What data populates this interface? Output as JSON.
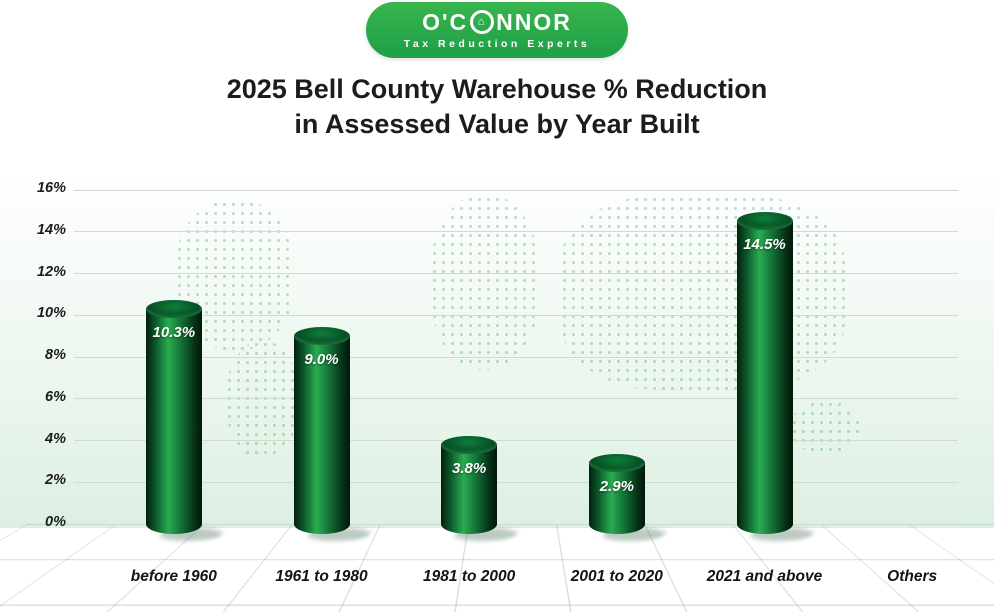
{
  "theme": {
    "brand_green": "#38b54d",
    "brand_green_dark": "#1f9f48",
    "bar_light": "#2aac50",
    "bar_dark": "#041f0e",
    "bg_tint": "#dcefe2",
    "grid_color": "#cfdad1",
    "title_color": "#1c1c1c"
  },
  "logo": {
    "name_prefix": "O'C",
    "house_icon": "⌂",
    "name_suffix": "NNOR",
    "tagline": "Tax Reduction Experts"
  },
  "title": {
    "line1": "2025 Bell County Warehouse % Reduction",
    "line2": "in Assessed Value by Year Built"
  },
  "chart_data": {
    "type": "bar",
    "style": "3d-cylinder",
    "title": "2025 Bell County Warehouse % Reduction in Assessed Value by Year Built",
    "categories": [
      "before 1960",
      "1961 to 1980",
      "1981 to 2000",
      "2001 to 2020",
      "2021 and above",
      "Others"
    ],
    "values": [
      10.3,
      9.0,
      3.8,
      2.9,
      14.5,
      null
    ],
    "value_labels": [
      "10.3%",
      "9.0%",
      "3.8%",
      "2.9%",
      "14.5%",
      ""
    ],
    "xlabel": "",
    "ylabel": "",
    "ylim": [
      0,
      16
    ],
    "ytick_step": 2,
    "yticks": [
      "0%",
      "2%",
      "4%",
      "6%",
      "8%",
      "10%",
      "12%",
      "14%",
      "16%"
    ],
    "grid": true,
    "legend": "none"
  }
}
